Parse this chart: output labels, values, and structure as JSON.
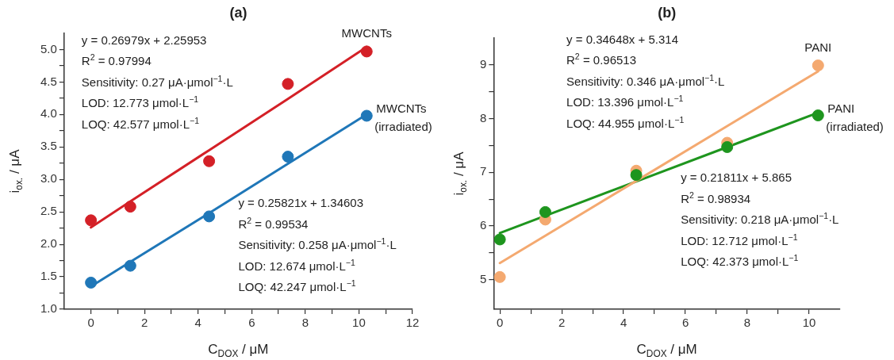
{
  "chart_data": [
    {
      "type": "scatter",
      "title": "(a)",
      "xlabel": "C$_{DOX}$ / μM",
      "ylabel": "i$_{ox.}$ / μA",
      "xlim": [
        -1,
        12
      ],
      "ylim": [
        1.0,
        5.25
      ],
      "xticks": [
        0,
        {
          "value": 1,
          "label": null
        },
        2,
        {
          "value": 3,
          "label": null
        },
        4,
        {
          "value": 5,
          "label": null
        },
        6,
        {
          "value": 7,
          "label": null
        },
        8,
        {
          "value": 9,
          "label": null
        },
        10,
        {
          "value": 11,
          "label": null
        },
        12
      ],
      "yticks": [
        {
          "value": 1.0,
          "label": "1.0"
        },
        {
          "value": 1.25,
          "label": null
        },
        {
          "value": 1.5,
          "label": "1.5"
        },
        {
          "value": 1.75,
          "label": null
        },
        {
          "value": 2.0,
          "label": "2.0"
        },
        {
          "value": 2.25,
          "label": null
        },
        {
          "value": 2.5,
          "label": "2.5"
        },
        {
          "value": 2.75,
          "label": null
        },
        {
          "value": 3.0,
          "label": "3.0"
        },
        {
          "value": 3.25,
          "label": null
        },
        {
          "value": 3.5,
          "label": "3.5"
        },
        {
          "value": 3.75,
          "label": null
        },
        {
          "value": 4.0,
          "label": "4.0"
        },
        {
          "value": 4.25,
          "label": null
        },
        {
          "value": 4.5,
          "label": "4.5"
        },
        {
          "value": 4.75,
          "label": null
        },
        {
          "value": 5.0,
          "label": "5.0"
        }
      ],
      "grid": false,
      "legend": false,
      "marker": "circle",
      "x": [
        0,
        1.47,
        4.41,
        7.35,
        10.29
      ],
      "series": [
        {
          "name": "MWCNTs",
          "color": "#d42027",
          "values": [
            2.37,
            2.58,
            3.28,
            4.47,
            4.97
          ]
        },
        {
          "name": "MWCNTs (irradiated)",
          "color": "#1f77b8",
          "values": [
            1.41,
            1.67,
            2.43,
            3.35,
            3.98
          ]
        },
        {
          "type": "line",
          "marker": "none",
          "color": "#d42027",
          "values": [
            2.26,
            2.66,
            3.45,
            4.24,
            5.04
          ]
        },
        {
          "type": "line",
          "marker": "none",
          "color": "#1f77b8",
          "values": [
            1.35,
            1.73,
            2.48,
            3.24,
            4.0
          ]
        }
      ],
      "annotations": [
        "y = 0.26979x + 2.25953",
        "R$^{2}$ = 0.97994",
        "Sensitivity: 0.27 μA·μmol$^{−1}$·L",
        "LOD: 12.773 μmol·L$^{−1}$",
        "LOQ: 42.577 μmol·L$^{−1}$",
        "y = 0.25821x + 1.34603",
        "R$^{2}$ = 0.99534",
        "Sensitivity: 0.258 μA·μmol$^{−1}$·L",
        "LOD: 12.674 μmol·L$^{−1}$",
        "LOQ: 42.247 μmol·L$^{−1}$"
      ]
    },
    {
      "type": "scatter",
      "title": "(b)",
      "xlabel": "C$_{DOX}$ / μM",
      "ylabel": "i$_{ox.}$ / μA",
      "xlim": [
        -0.2,
        11
      ],
      "ylim": [
        4.45,
        9.5
      ],
      "xticks": [
        0,
        {
          "value": 1,
          "label": null
        },
        2,
        {
          "value": 3,
          "label": null
        },
        4,
        {
          "value": 5,
          "label": null
        },
        6,
        {
          "value": 7,
          "label": null
        },
        8,
        {
          "value": 9,
          "label": null
        },
        10
      ],
      "yticks": [
        5,
        {
          "value": 5.5,
          "label": null
        },
        6,
        {
          "value": 6.5,
          "label": null
        },
        7,
        {
          "value": 7.5,
          "label": null
        },
        8,
        {
          "value": 8.5,
          "label": null
        },
        9
      ],
      "grid": false,
      "legend": false,
      "marker": "circle",
      "x": [
        0,
        1.47,
        4.41,
        7.35,
        10.29
      ],
      "series": [
        {
          "name": "PANI",
          "color": "#f4a970",
          "values": [
            5.05,
            6.12,
            7.03,
            7.55,
            8.99
          ]
        },
        {
          "name": "PANI (irradiated)",
          "color": "#1e951e",
          "values": [
            5.75,
            6.26,
            6.95,
            7.47,
            8.06
          ]
        },
        {
          "type": "line",
          "marker": "none",
          "color": "#f4a970",
          "values": [
            5.31,
            5.82,
            6.84,
            7.86,
            8.88
          ]
        },
        {
          "type": "line",
          "marker": "none",
          "color": "#1e951e",
          "values": [
            5.87,
            6.19,
            6.83,
            7.47,
            8.11
          ]
        }
      ],
      "annotations": [
        "y = 0.34648x + 5.314",
        "R$^{2}$ = 0.96513",
        "Sensitivity: 0.346 μA·μmol$^{−1}$·L",
        "LOD: 13.396 μmol·L$^{−1}$",
        "LOQ: 44.955 μmol·L$^{−1}$",
        "y = 0.21811x + 5.865",
        "R$^{2}$ = 0.98934",
        "Sensitivity: 0.218 μA·μmol$^{−1}$·L",
        "LOD: 12.712 μmol·L$^{−1}$",
        "LOQ: 42.373 μmol·L$^{−1}$"
      ]
    }
  ]
}
